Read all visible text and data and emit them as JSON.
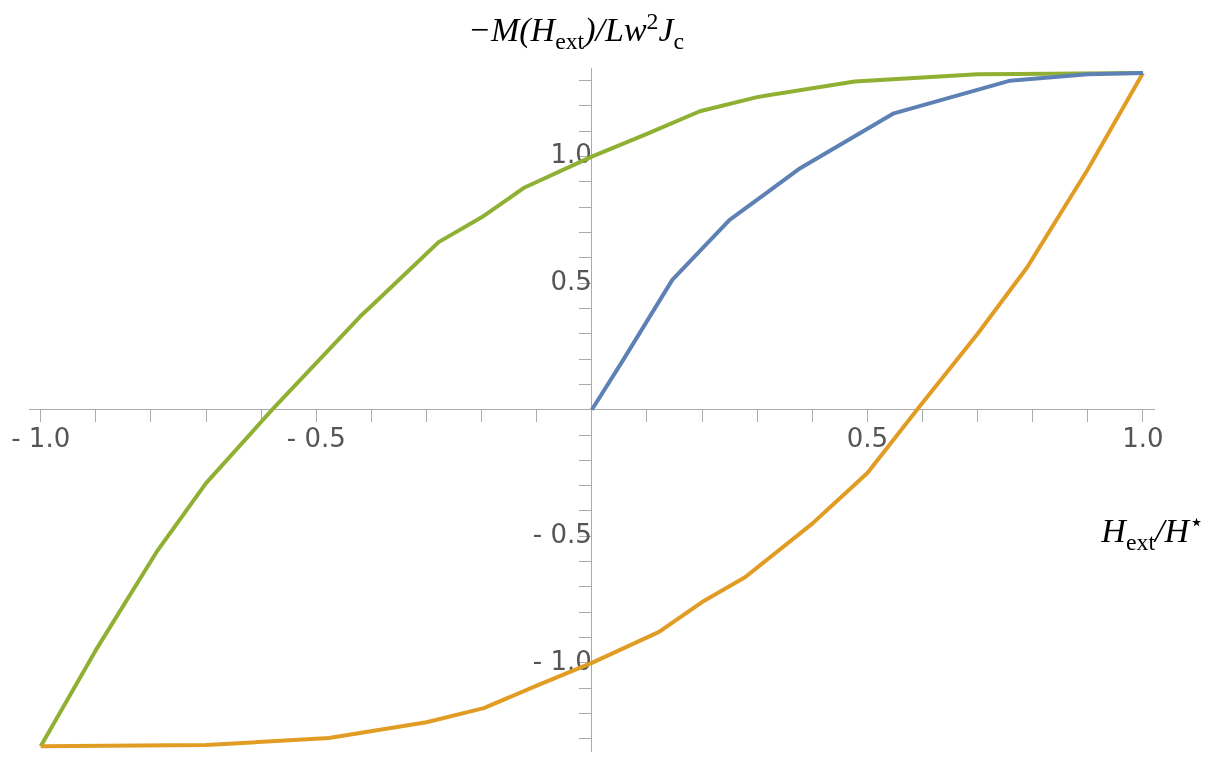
{
  "chart_data": {
    "type": "line",
    "xlabel": "H$_{ext}$/H$^{⋆}$",
    "ylabel": "−M(H$_{ext}$)/Lw$^{2}$J$_{c}$",
    "xlim": [
      -1.02,
      1.02
    ],
    "ylim": [
      -1.35,
      1.35
    ],
    "xticks": [
      {
        "value": -1,
        "label": "- 1.0"
      },
      {
        "value": -0.9,
        "label": null
      },
      {
        "value": -0.8,
        "label": null
      },
      {
        "value": -0.7,
        "label": null
      },
      {
        "value": -0.6,
        "label": null
      },
      {
        "value": -0.5,
        "label": "- 0.5"
      },
      {
        "value": -0.4,
        "label": null
      },
      {
        "value": -0.3,
        "label": null
      },
      {
        "value": -0.2,
        "label": null
      },
      {
        "value": -0.1,
        "label": null
      },
      {
        "value": 0.1,
        "label": null
      },
      {
        "value": 0.2,
        "label": null
      },
      {
        "value": 0.3,
        "label": null
      },
      {
        "value": 0.4,
        "label": null
      },
      {
        "value": 0.5,
        "label": "0.5"
      },
      {
        "value": 0.6,
        "label": null
      },
      {
        "value": 0.7,
        "label": null
      },
      {
        "value": 0.8,
        "label": null
      },
      {
        "value": 0.9,
        "label": null
      },
      {
        "value": 1,
        "label": "1.0"
      }
    ],
    "yticks": [
      {
        "value": -1.3,
        "label": null
      },
      {
        "value": -1.2,
        "label": null
      },
      {
        "value": -1.1,
        "label": null
      },
      {
        "value": -1,
        "label": "- 1.0"
      },
      {
        "value": -0.9,
        "label": null
      },
      {
        "value": -0.8,
        "label": null
      },
      {
        "value": -0.7,
        "label": null
      },
      {
        "value": -0.6,
        "label": null
      },
      {
        "value": -0.5,
        "label": "- 0.5"
      },
      {
        "value": -0.4,
        "label": null
      },
      {
        "value": -0.3,
        "label": null
      },
      {
        "value": -0.2,
        "label": null
      },
      {
        "value": -0.1,
        "label": null
      },
      {
        "value": 0.1,
        "label": null
      },
      {
        "value": 0.2,
        "label": null
      },
      {
        "value": 0.3,
        "label": null
      },
      {
        "value": 0.4,
        "label": null
      },
      {
        "value": 0.5,
        "label": "0.5"
      },
      {
        "value": 0.6,
        "label": null
      },
      {
        "value": 0.7,
        "label": null
      },
      {
        "value": 0.8,
        "label": null
      },
      {
        "value": 0.9,
        "label": null
      },
      {
        "value": 1,
        "label": "1.0"
      },
      {
        "value": 1.1,
        "label": null
      },
      {
        "value": 1.2,
        "label": null
      },
      {
        "value": 1.3,
        "label": null
      }
    ],
    "grid": false,
    "series": [
      {
        "color": "#5e81b5",
        "x": [
          0,
          0.055,
          0.146,
          0.25,
          0.378,
          0.548,
          0.759,
          0.9,
          1
        ],
        "values": [
          0,
          0.19,
          0.513,
          0.75,
          0.954,
          1.171,
          1.3,
          1.325,
          1.33
        ]
      },
      {
        "color": "#e19c24",
        "x": [
          -1,
          -0.7,
          -0.477,
          -0.3,
          -0.196,
          -0.1,
          0,
          0.122,
          0.2,
          0.278,
          0.4,
          0.5,
          0.59,
          0.7,
          0.79,
          0.9,
          1
        ],
        "values": [
          -1.33,
          -1.325,
          -1.297,
          -1.235,
          -1.179,
          -1.09,
          -1,
          -0.878,
          -0.76,
          -0.662,
          -0.45,
          -0.25,
          0,
          0.3,
          0.563,
          0.95,
          1.33
        ]
      },
      {
        "color": "#8fb032",
        "x": [
          -1,
          -0.9,
          -0.79,
          -0.7,
          -0.58,
          -0.42,
          -0.4,
          -0.278,
          -0.2,
          -0.122,
          0,
          0.1,
          0.196,
          0.3,
          0.477,
          0.7,
          1
        ],
        "values": [
          -1.33,
          -0.95,
          -0.563,
          -0.29,
          0,
          0.369,
          0.41,
          0.662,
          0.76,
          0.878,
          1,
          1.09,
          1.179,
          1.235,
          1.297,
          1.325,
          1.33
        ]
      }
    ]
  }
}
